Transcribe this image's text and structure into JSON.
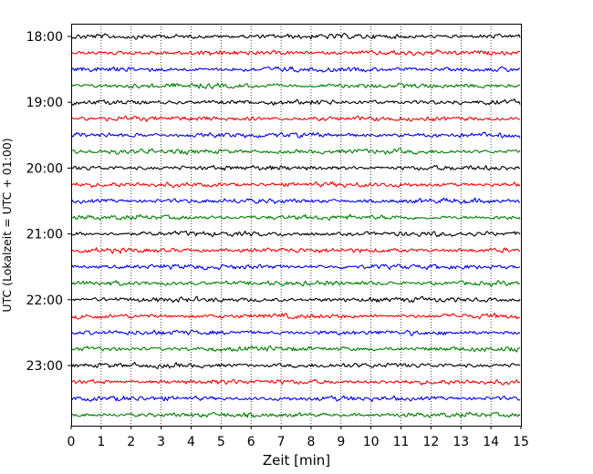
{
  "chart_data": {
    "type": "line",
    "title": "",
    "xlabel": "Zeit  [min]",
    "ylabel": "UTC (Lokalzeit = UTC + 01:00)",
    "xlim": [
      0,
      15
    ],
    "x_ticks": [
      "0",
      "1",
      "2",
      "3",
      "4",
      "5",
      "6",
      "7",
      "8",
      "9",
      "10",
      "11",
      "12",
      "13",
      "14",
      "15"
    ],
    "y_tick_labels": [
      "18:00",
      "19:00",
      "20:00",
      "21:00",
      "22:00",
      "23:00"
    ],
    "grid": "vertical dotted lines at each minute",
    "trace_interval_min": 15,
    "start_time": "18:00",
    "trace_count": 24,
    "trace_colors": [
      "#000000",
      "#ff0000",
      "#0000ff",
      "#008000"
    ],
    "series": [
      {
        "start": "18:00",
        "color": "#000000"
      },
      {
        "start": "18:15",
        "color": "#ff0000"
      },
      {
        "start": "18:30",
        "color": "#0000ff"
      },
      {
        "start": "18:45",
        "color": "#008000"
      },
      {
        "start": "19:00",
        "color": "#000000"
      },
      {
        "start": "19:15",
        "color": "#ff0000"
      },
      {
        "start": "19:30",
        "color": "#0000ff"
      },
      {
        "start": "19:45",
        "color": "#008000"
      },
      {
        "start": "20:00",
        "color": "#000000"
      },
      {
        "start": "20:15",
        "color": "#ff0000"
      },
      {
        "start": "20:30",
        "color": "#0000ff"
      },
      {
        "start": "20:45",
        "color": "#008000"
      },
      {
        "start": "21:00",
        "color": "#000000"
      },
      {
        "start": "21:15",
        "color": "#ff0000"
      },
      {
        "start": "21:30",
        "color": "#0000ff"
      },
      {
        "start": "21:45",
        "color": "#008000"
      },
      {
        "start": "22:00",
        "color": "#000000"
      },
      {
        "start": "22:15",
        "color": "#ff0000"
      },
      {
        "start": "22:30",
        "color": "#0000ff"
      },
      {
        "start": "22:45",
        "color": "#008000"
      },
      {
        "start": "23:00",
        "color": "#000000"
      },
      {
        "start": "23:15",
        "color": "#ff0000"
      },
      {
        "start": "23:30",
        "color": "#0000ff"
      },
      {
        "start": "23:45",
        "color": "#008000"
      }
    ]
  }
}
